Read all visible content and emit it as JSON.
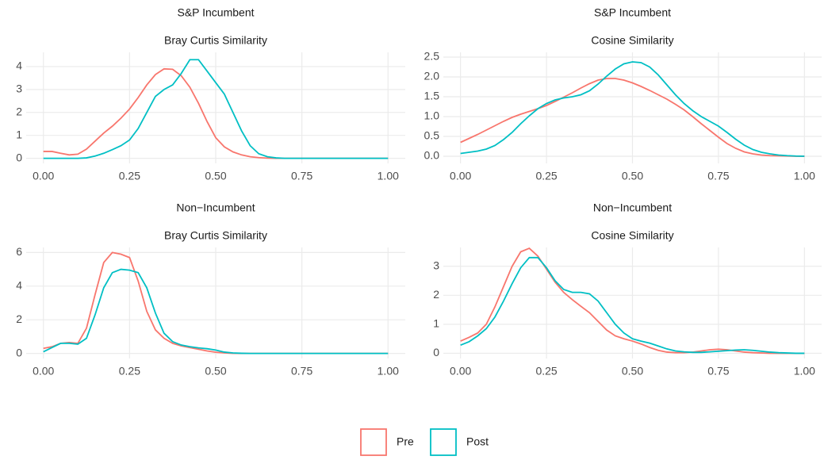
{
  "chart_data": [
    {
      "type": "line",
      "title": "S&P Incumbent",
      "subtitle": "Bray Curtis Similarity",
      "x": [
        0,
        0.025,
        0.05,
        0.075,
        0.1,
        0.125,
        0.15,
        0.175,
        0.2,
        0.225,
        0.25,
        0.275,
        0.3,
        0.325,
        0.35,
        0.375,
        0.4,
        0.425,
        0.45,
        0.475,
        0.5,
        0.525,
        0.55,
        0.575,
        0.6,
        0.625,
        0.65,
        0.675,
        0.7,
        0.725,
        0.75,
        0.775,
        0.8,
        0.825,
        0.85,
        0.875,
        0.9,
        0.925,
        0.95,
        0.975,
        1
      ],
      "series": [
        {
          "color": "#F8766D",
          "values": [
            0.3,
            0.3,
            0.22,
            0.15,
            0.18,
            0.4,
            0.75,
            1.1,
            1.4,
            1.75,
            2.15,
            2.65,
            3.2,
            3.65,
            3.9,
            3.88,
            3.6,
            3.1,
            2.4,
            1.6,
            0.9,
            0.5,
            0.28,
            0.15,
            0.07,
            0.03,
            0.01,
            0,
            0,
            0,
            0,
            0,
            0,
            0,
            0,
            0,
            0,
            0,
            0,
            0,
            0
          ]
        },
        {
          "color": "#00BFC4",
          "values": [
            0,
            0,
            0,
            0,
            0,
            0.02,
            0.1,
            0.22,
            0.38,
            0.55,
            0.8,
            1.3,
            2.0,
            2.7,
            3.0,
            3.2,
            3.7,
            4.3,
            4.3,
            3.8,
            3.3,
            2.8,
            2.0,
            1.2,
            0.55,
            0.2,
            0.07,
            0.02,
            0,
            0,
            0,
            0,
            0,
            0,
            0,
            0,
            0,
            0,
            0,
            0,
            0
          ]
        }
      ],
      "xlim": [
        -0.05,
        1.05
      ],
      "ylim": [
        -0.22,
        4.62
      ],
      "xticks": [
        {
          "value": 0,
          "label": "0.00"
        },
        0.25,
        {
          "value": 0.5,
          "label": "0.50"
        },
        0.75,
        {
          "value": 1,
          "label": "1.00"
        }
      ],
      "yticks": [
        0,
        1,
        2,
        3,
        4
      ],
      "grid": true
    },
    {
      "type": "line",
      "title": "S&P Incumbent",
      "subtitle": "Cosine Similarity",
      "x": [
        0,
        0.025,
        0.05,
        0.075,
        0.1,
        0.125,
        0.15,
        0.175,
        0.2,
        0.225,
        0.25,
        0.275,
        0.3,
        0.325,
        0.35,
        0.375,
        0.4,
        0.425,
        0.45,
        0.475,
        0.5,
        0.525,
        0.55,
        0.575,
        0.6,
        0.625,
        0.65,
        0.675,
        0.7,
        0.725,
        0.75,
        0.775,
        0.8,
        0.825,
        0.85,
        0.875,
        0.9,
        0.925,
        0.95,
        0.975,
        1
      ],
      "series": [
        {
          "color": "#F8766D",
          "values": [
            0.35,
            0.45,
            0.55,
            0.66,
            0.77,
            0.88,
            0.98,
            1.06,
            1.13,
            1.2,
            1.28,
            1.38,
            1.49,
            1.6,
            1.72,
            1.83,
            1.92,
            1.96,
            1.96,
            1.92,
            1.85,
            1.76,
            1.66,
            1.55,
            1.44,
            1.31,
            1.17,
            1.0,
            0.82,
            0.65,
            0.48,
            0.32,
            0.2,
            0.11,
            0.06,
            0.03,
            0.015,
            0.01,
            0.005,
            0,
            0
          ]
        },
        {
          "color": "#00BFC4",
          "values": [
            0.07,
            0.1,
            0.13,
            0.18,
            0.27,
            0.42,
            0.6,
            0.82,
            1.02,
            1.2,
            1.33,
            1.42,
            1.47,
            1.5,
            1.55,
            1.65,
            1.82,
            2.02,
            2.2,
            2.33,
            2.38,
            2.36,
            2.25,
            2.05,
            1.8,
            1.55,
            1.33,
            1.15,
            1.0,
            0.88,
            0.76,
            0.6,
            0.43,
            0.28,
            0.17,
            0.1,
            0.06,
            0.03,
            0.015,
            0.005,
            0
          ]
        }
      ],
      "xlim": [
        -0.05,
        1.05
      ],
      "ylim": [
        -0.18,
        2.62
      ],
      "xticks": [
        {
          "value": 0,
          "label": "0.00"
        },
        0.25,
        {
          "value": 0.5,
          "label": "0.50"
        },
        0.75,
        {
          "value": 1,
          "label": "1.00"
        }
      ],
      "yticks": [
        {
          "value": 0,
          "label": "0.0"
        },
        0.5,
        {
          "value": 1,
          "label": "1.0"
        },
        1.5,
        {
          "value": 2,
          "label": "2.0"
        },
        2.5
      ],
      "grid": true
    },
    {
      "type": "line",
      "title": "Non−Incumbent",
      "subtitle": "Bray Curtis Similarity",
      "x": [
        0,
        0.025,
        0.05,
        0.075,
        0.1,
        0.125,
        0.15,
        0.175,
        0.2,
        0.225,
        0.25,
        0.275,
        0.3,
        0.325,
        0.35,
        0.375,
        0.4,
        0.425,
        0.45,
        0.475,
        0.5,
        0.525,
        0.55,
        0.575,
        0.6,
        0.625,
        0.65,
        0.675,
        0.7,
        0.725,
        0.75,
        0.775,
        0.8,
        0.825,
        0.85,
        0.875,
        0.9,
        0.925,
        0.95,
        0.975,
        1
      ],
      "series": [
        {
          "color": "#F8766D",
          "values": [
            0.3,
            0.4,
            0.6,
            0.65,
            0.6,
            1.5,
            3.5,
            5.4,
            6.0,
            5.9,
            5.7,
            4.3,
            2.5,
            1.4,
            0.9,
            0.6,
            0.45,
            0.35,
            0.25,
            0.15,
            0.07,
            0.03,
            0.01,
            0,
            0,
            0,
            0,
            0,
            0,
            0,
            0,
            0,
            0,
            0,
            0,
            0,
            0,
            0,
            0,
            0,
            0
          ]
        },
        {
          "color": "#00BFC4",
          "values": [
            0.1,
            0.35,
            0.6,
            0.6,
            0.55,
            0.9,
            2.3,
            3.9,
            4.8,
            5.0,
            4.95,
            4.8,
            3.9,
            2.4,
            1.2,
            0.7,
            0.5,
            0.4,
            0.33,
            0.28,
            0.2,
            0.08,
            0.03,
            0.01,
            0,
            0,
            0,
            0,
            0,
            0,
            0,
            0,
            0,
            0,
            0,
            0,
            0,
            0,
            0,
            0,
            0
          ]
        }
      ],
      "xlim": [
        -0.05,
        1.05
      ],
      "ylim": [
        -0.3,
        6.3
      ],
      "xticks": [
        {
          "value": 0,
          "label": "0.00"
        },
        0.25,
        {
          "value": 0.5,
          "label": "0.50"
        },
        0.75,
        {
          "value": 1,
          "label": "1.00"
        }
      ],
      "yticks": [
        0,
        2,
        4,
        6
      ],
      "grid": true
    },
    {
      "type": "line",
      "title": "Non−Incumbent",
      "subtitle": "Cosine Similarity",
      "x": [
        0,
        0.025,
        0.05,
        0.075,
        0.1,
        0.125,
        0.15,
        0.175,
        0.2,
        0.225,
        0.25,
        0.275,
        0.3,
        0.325,
        0.35,
        0.375,
        0.4,
        0.425,
        0.45,
        0.475,
        0.5,
        0.525,
        0.55,
        0.575,
        0.6,
        0.625,
        0.65,
        0.675,
        0.7,
        0.725,
        0.75,
        0.775,
        0.8,
        0.825,
        0.85,
        0.875,
        0.9,
        0.925,
        0.95,
        0.975,
        1
      ],
      "series": [
        {
          "color": "#F8766D",
          "values": [
            0.42,
            0.55,
            0.7,
            1.0,
            1.6,
            2.3,
            3.0,
            3.5,
            3.62,
            3.35,
            2.9,
            2.45,
            2.1,
            1.85,
            1.62,
            1.4,
            1.1,
            0.8,
            0.6,
            0.5,
            0.42,
            0.32,
            0.2,
            0.1,
            0.04,
            0.02,
            0.02,
            0.04,
            0.08,
            0.12,
            0.14,
            0.12,
            0.08,
            0.04,
            0.02,
            0.01,
            0,
            0,
            0,
            0,
            0
          ]
        },
        {
          "color": "#00BFC4",
          "values": [
            0.28,
            0.4,
            0.6,
            0.85,
            1.25,
            1.8,
            2.4,
            2.95,
            3.3,
            3.3,
            2.95,
            2.5,
            2.2,
            2.1,
            2.1,
            2.05,
            1.8,
            1.4,
            1.0,
            0.7,
            0.5,
            0.42,
            0.35,
            0.25,
            0.15,
            0.08,
            0.05,
            0.03,
            0.03,
            0.05,
            0.07,
            0.09,
            0.11,
            0.12,
            0.1,
            0.07,
            0.04,
            0.02,
            0.01,
            0,
            0
          ]
        }
      ],
      "xlim": [
        -0.05,
        1.05
      ],
      "ylim": [
        -0.18,
        3.65
      ],
      "xticks": [
        {
          "value": 0,
          "label": "0.00"
        },
        0.25,
        {
          "value": 0.5,
          "label": "0.50"
        },
        0.75,
        {
          "value": 1,
          "label": "1.00"
        }
      ],
      "yticks": [
        0,
        1,
        2,
        3
      ],
      "grid": true
    }
  ],
  "legend": [
    {
      "name": "Pre",
      "color": "#F8766D"
    },
    {
      "name": "Post",
      "color": "#00BFC4"
    }
  ]
}
